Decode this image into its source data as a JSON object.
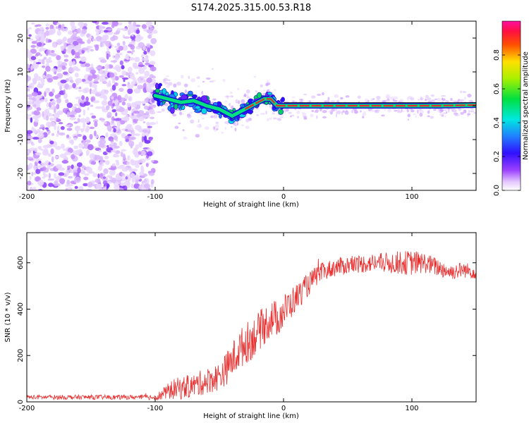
{
  "title": "S174.2025.315.00.53.R18",
  "colors": {
    "trace": "#e83030",
    "ridge": "#e82a2a",
    "axis": "#000000",
    "background": "#ffffff"
  },
  "chart_data": [
    {
      "type": "heatmap",
      "xlabel": "Height of straight line (km)",
      "ylabel": "Frequency (Hz)",
      "xlim": [
        -200,
        150
      ],
      "ylim": [
        -25,
        25
      ],
      "xticks": [
        {
          "value": -200,
          "label": "-200"
        },
        {
          "value": -100,
          "label": "-100"
        },
        {
          "value": 0,
          "label": "0"
        },
        {
          "value": 100,
          "label": "100"
        }
      ],
      "yticks": [
        {
          "value": 20,
          "label": "20"
        },
        {
          "value": 10,
          "label": "10"
        },
        {
          "value": 0,
          "label": "0"
        },
        {
          "value": -10,
          "label": "-10"
        },
        {
          "value": -20,
          "label": "-20"
        }
      ],
      "ridge_x": [
        -100,
        -90,
        -80,
        -70,
        -60,
        -50,
        -40,
        -35,
        -30,
        -25,
        -20,
        -15,
        -10,
        -5,
        0,
        10,
        20,
        40,
        60,
        80,
        100,
        120,
        150
      ],
      "ridge_y": [
        3,
        2,
        1,
        1.5,
        0,
        -1,
        -3,
        -2,
        -1,
        0,
        1,
        2,
        2,
        0,
        0,
        0,
        0,
        0,
        0,
        0,
        0,
        0,
        0.2
      ],
      "colorbar": {
        "label": "Normalized spectral amplitude",
        "range": [
          0,
          1
        ],
        "ticks": [
          {
            "value": 0.0,
            "label": "0.0"
          },
          {
            "value": 0.2,
            "label": "0.2"
          },
          {
            "value": 0.4,
            "label": "0.4"
          },
          {
            "value": 0.6,
            "label": "0.6"
          },
          {
            "value": 0.8,
            "label": "0.8"
          }
        ]
      }
    },
    {
      "type": "line",
      "xlabel": "Height of straight line (km)",
      "ylabel": "SNR (10 * v/v)",
      "xlim": [
        -200,
        150
      ],
      "ylim": [
        0,
        730
      ],
      "xticks": [
        {
          "value": -200,
          "label": "-200"
        },
        {
          "value": -100,
          "label": "-100"
        },
        {
          "value": 0,
          "label": "0"
        },
        {
          "value": 100,
          "label": "100"
        }
      ],
      "yticks": [
        {
          "value": 0,
          "label": "0"
        },
        {
          "value": 200,
          "label": "200"
        },
        {
          "value": 400,
          "label": "400"
        },
        {
          "value": 600,
          "label": "600"
        }
      ],
      "series": [
        {
          "name": "SNR",
          "x": [
            -200,
            -180,
            -160,
            -140,
            -120,
            -100,
            -95,
            -90,
            -85,
            -80,
            -75,
            -70,
            -65,
            -60,
            -55,
            -50,
            -45,
            -40,
            -35,
            -30,
            -25,
            -20,
            -15,
            -10,
            -5,
            0,
            5,
            10,
            15,
            20,
            25,
            30,
            35,
            40,
            50,
            60,
            70,
            80,
            90,
            100,
            110,
            120,
            130,
            140,
            150
          ],
          "y": [
            20,
            20,
            20,
            20,
            20,
            20,
            30,
            45,
            55,
            60,
            65,
            70,
            80,
            90,
            100,
            110,
            140,
            180,
            220,
            250,
            270,
            300,
            330,
            360,
            360,
            390,
            420,
            450,
            480,
            510,
            540,
            560,
            570,
            580,
            590,
            595,
            600,
            600,
            600,
            600,
            600,
            580,
            560,
            570,
            560
          ],
          "noise_amplitude": [
            10,
            10,
            10,
            10,
            10,
            12,
            25,
            35,
            45,
            50,
            50,
            50,
            55,
            55,
            60,
            60,
            70,
            80,
            85,
            90,
            90,
            85,
            85,
            80,
            80,
            75,
            70,
            60,
            55,
            50,
            45,
            40,
            40,
            40,
            40,
            40,
            40,
            45,
            50,
            55,
            45,
            40,
            35,
            35,
            30
          ]
        }
      ]
    }
  ]
}
